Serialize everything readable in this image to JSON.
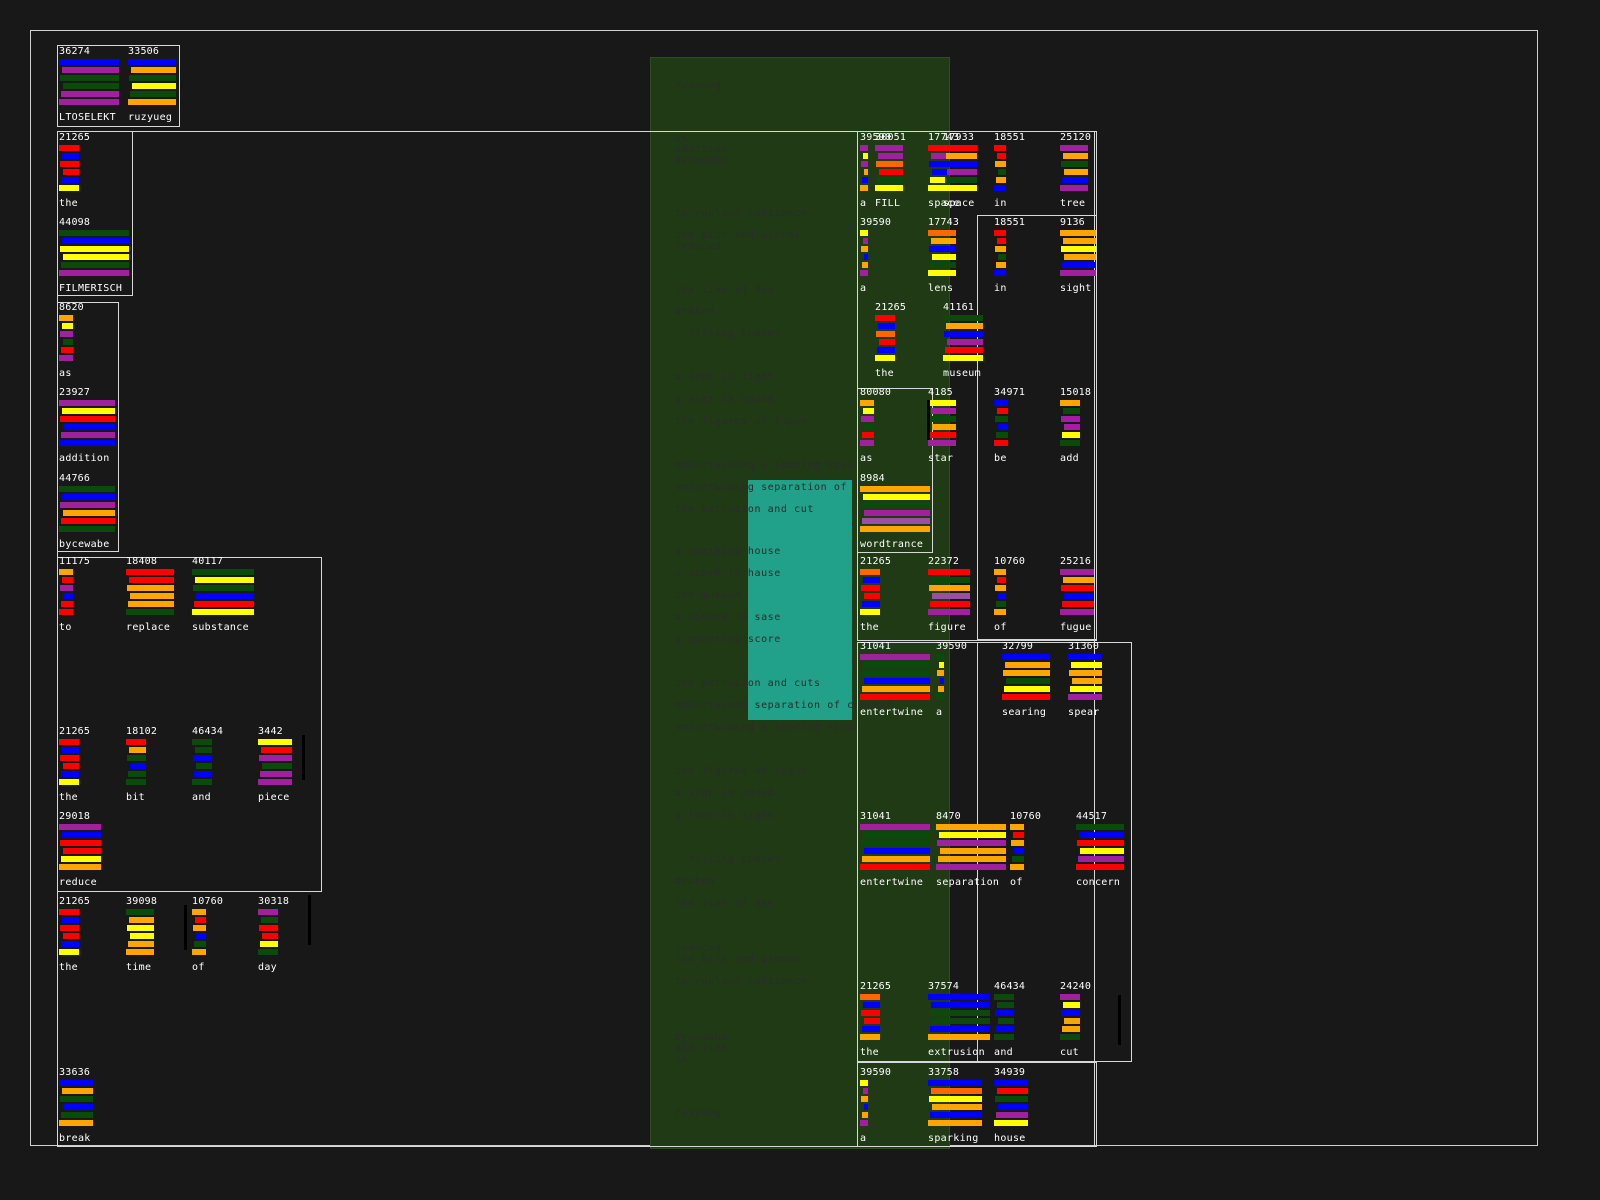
{
  "palette": {
    "background": "#181818",
    "frame": "#cfcfcf",
    "panel_green": "#1f3a14",
    "teal": "#21a08a",
    "bar_colors": [
      "#ff0000",
      "#0000ff",
      "#ffff00",
      "#ffa500",
      "#a020a0",
      "#0a4a0a",
      "#ff6600",
      "#9a4fa0",
      "#cc0000"
    ]
  },
  "poem": {
    "lines": [
      "ruzyueg",
      "as",
      "addition",
      "bycewabe",
      "to replace substance",
      "the bits and pieces",
      "reduced",
      "the time of day",
      "broken",
      ", filling spaces",
      "a lens in sight",
      "a star is added",
      "the figures of fugue",
      "entertwining a searing spear",
      "entertwining separation of concern",
      "the extrusion and cut",
      "a sparking house",
      "a spark in hause",
      "the museum",
      "a sphere in sase",
      "a swearing score",
      "the extrusion and cuts",
      "entertwined separation of concern",
      "entertwining a searing spear",
      "the figures of fugue",
      "a star is added",
      "a lens in sight",
      ", filling spaces",
      "broken",
      "the time of day",
      "reduced",
      "the bits and pieces",
      "to replace substance",
      "bycewabe",
      "addition",
      "as",
      "ruzyueg"
    ]
  },
  "words": [
    {
      "id": "w1",
      "num": "36274",
      "label": "LTOSELEKT",
      "bars": [
        "#0000ff",
        "#a020a0",
        "#0a4a0a",
        "#0a4a0a",
        "#a020a0",
        "#a020a0"
      ]
    },
    {
      "id": "w2",
      "num": "33506",
      "label": "ruzyueg",
      "bars": [
        "#0000ff",
        "#ffa500",
        "#0a4a0a",
        "#ffff00",
        "#0a4a0a",
        "#ffa500"
      ]
    },
    {
      "id": "w3",
      "num": "21265",
      "label": "the",
      "bars": [
        "#ff0000",
        "#0000ff",
        "#ff0000",
        "#ff0000",
        "#0000ff",
        "#ffff00"
      ]
    },
    {
      "id": "w4",
      "num": "44098",
      "label": "FILMERISCH",
      "bars": [
        "#0a4a0a",
        "#0000ff",
        "#ffff00",
        "#ffff00",
        "#0a4a0a",
        "#a020a0"
      ]
    },
    {
      "id": "w5",
      "num": "8620",
      "label": "as",
      "bars": [
        "#ffa500",
        "#ffff00",
        "#a020a0",
        "#0a4a0a",
        "#ff0000",
        "#a020a0"
      ]
    },
    {
      "id": "w6",
      "num": "23927",
      "label": "addition",
      "bars": [
        "#a020a0",
        "#ffff00",
        "#ff0000",
        "#0000ff",
        "#a020a0",
        "#0000ff"
      ]
    },
    {
      "id": "w7",
      "num": "44766",
      "label": "bycewabe",
      "bars": [
        "#0a4a0a",
        "#0000ff",
        "#a020a0",
        "#ffa500",
        "#ff0000",
        "#0a4a0a"
      ]
    },
    {
      "id": "w8",
      "num": "11175",
      "label": "to",
      "bars": [
        "#ffa500",
        "#ff0000",
        "#a020a0",
        "#0000ff",
        "#ff0000",
        "#ff0000"
      ]
    },
    {
      "id": "w9",
      "num": "18408",
      "label": "replace",
      "bars": [
        "#ff0000",
        "#ff0000",
        "#ffa500",
        "#ffa500",
        "#ffa500",
        "#0a4a0a"
      ]
    },
    {
      "id": "w10",
      "num": "40117",
      "label": "substance",
      "bars": [
        "#0a4a0a",
        "#ffff00",
        "#0a4a0a",
        "#0000ff",
        "#ff0000",
        "#ffff00"
      ]
    },
    {
      "id": "w11",
      "num": "21265",
      "label": "the",
      "bars": [
        "#ff0000",
        "#0000ff",
        "#ff0000",
        "#ff0000",
        "#0000ff",
        "#ffff00"
      ]
    },
    {
      "id": "w12",
      "num": "18102",
      "label": "bit",
      "bars": [
        "#ff0000",
        "#ffa500",
        "#0a4a0a",
        "#0000ff",
        "#0a4a0a",
        "#0a4a0a"
      ]
    },
    {
      "id": "w13",
      "num": "46434",
      "label": "and",
      "bars": [
        "#0a4a0a",
        "#0a4a0a",
        "#0000ff",
        "#0a4a0a",
        "#0000ff",
        "#0a4a0a"
      ]
    },
    {
      "id": "w14",
      "num": "3442",
      "label": "piece",
      "bars": [
        "#ffff00",
        "#ff0000",
        "#a020a0",
        "#0a4a0a",
        "#a020a0",
        "#a020a0"
      ]
    },
    {
      "id": "w15",
      "num": "29018",
      "label": "reduce",
      "bars": [
        "#a020a0",
        "#0000ff",
        "#ff0000",
        "#ff0000",
        "#ffff00",
        "#ffa500"
      ]
    },
    {
      "id": "w16",
      "num": "21265",
      "label": "the",
      "bars": [
        "#ff0000",
        "#0000ff",
        "#ff0000",
        "#ff0000",
        "#0000ff",
        "#ffff00"
      ]
    },
    {
      "id": "w17",
      "num": "39098",
      "label": "time",
      "bars": [
        "#0a4a0a",
        "#ffa500",
        "#ffff00",
        "#ffff00",
        "#ffa500",
        "#ffa500"
      ]
    },
    {
      "id": "w18",
      "num": "10760",
      "label": "of",
      "bars": [
        "#ffa500",
        "#ff0000",
        "#ffa500",
        "#0000ff",
        "#0a4a0a",
        "#ffa500"
      ]
    },
    {
      "id": "w19",
      "num": "30318",
      "label": "day",
      "bars": [
        "#a020a0",
        "#0a4a0a",
        "#ff0000",
        "#ff0000",
        "#ffff00",
        "#0a4a0a"
      ]
    },
    {
      "id": "w20",
      "num": "33636",
      "label": "break",
      "bars": [
        "#0000ff",
        "#ffa500",
        "#0a4a0a",
        "#0000ff",
        "#0a4a0a",
        "#ffa500"
      ]
    },
    {
      "id": "w21",
      "num": "39590",
      "label": "a",
      "bars": [
        "#a020a0",
        "#ffff00",
        "#a020a0",
        "#ffa500",
        "#0000ff",
        "#ffa500"
      ]
    },
    {
      "id": "w22",
      "num": "30051",
      "label": "FILL",
      "bars": [
        "#a020a0",
        "#a020a0",
        "#ff6600",
        "#ff0000",
        "#0a4a0a",
        "#ffff00"
      ]
    },
    {
      "id": "w23",
      "num": "17743",
      "label": "space",
      "bars": [
        "#ff0000",
        "#a020a0",
        "#0000ff",
        "#0000ff",
        "#ffff00",
        "#ffff00"
      ]
    },
    {
      "id": "w24",
      "num": "17933",
      "label": "space",
      "bars": [
        "#ff0000",
        "#ffa500",
        "#0000ff",
        "#a020a0",
        "#0a4a0a",
        "#ffff00"
      ]
    },
    {
      "id": "w25",
      "num": "18551",
      "label": "in",
      "bars": [
        "#ff0000",
        "#ff0000",
        "#ffa500",
        "#0a4a0a",
        "#ffa500",
        "#0000ff"
      ]
    },
    {
      "id": "w26",
      "num": "25120",
      "label": "tree",
      "bars": [
        "#a020a0",
        "#ffa500",
        "#0a4a0a",
        "#ffa500",
        "#0000ff",
        "#a020a0"
      ]
    },
    {
      "id": "w27",
      "num": "39590",
      "label": "a",
      "bars": [
        "#ffff00",
        "#a020a0",
        "#ffa500",
        "#0000ff",
        "#ffa500",
        "#a020a0"
      ]
    },
    {
      "id": "w28",
      "num": "17743",
      "label": "lens",
      "bars": [
        "#ff6600",
        "#ffa500",
        "#0000ff",
        "#ffff00",
        "#0a4a0a",
        "#ffff00"
      ]
    },
    {
      "id": "w29",
      "num": "18551",
      "label": "in",
      "bars": [
        "#ff0000",
        "#ff0000",
        "#ffa500",
        "#0a4a0a",
        "#ffa500",
        "#0000ff"
      ]
    },
    {
      "id": "w30",
      "num": "9136",
      "label": "sight",
      "bars": [
        "#ffa500",
        "#ffa500",
        "#ffff00",
        "#ffa500",
        "#0000ff",
        "#a020a0"
      ]
    },
    {
      "id": "w31",
      "num": "21265",
      "label": "the",
      "bars": [
        "#ff0000",
        "#0000ff",
        "#ff6600",
        "#ff0000",
        "#0000ff",
        "#ffff00"
      ]
    },
    {
      "id": "w32",
      "num": "41161",
      "label": "museum",
      "bars": [
        "#0a4a0a",
        "#ffa500",
        "#0000ff",
        "#a020a0",
        "#ff0000",
        "#ffff00"
      ]
    },
    {
      "id": "w33",
      "num": "80080",
      "label": "as",
      "bars": [
        "#ffa500",
        "#ffff00",
        "#a020a0",
        "#0a4a0a",
        "#ff0000",
        "#a020a0"
      ]
    },
    {
      "id": "w34",
      "num": "4185",
      "label": "star",
      "bars": [
        "#ffff00",
        "#a020a0",
        "#0a4a0a",
        "#ffa500",
        "#ff0000",
        "#a020a0"
      ]
    },
    {
      "id": "w35",
      "num": "34971",
      "label": "be",
      "bars": [
        "#0000ff",
        "#ff0000",
        "#0a4a0a",
        "#0000ff",
        "#0a4a0a",
        "#ff0000"
      ]
    },
    {
      "id": "w36",
      "num": "15018",
      "label": "add",
      "bars": [
        "#ffa500",
        "#0a4a0a",
        "#a020a0",
        "#a020a0",
        "#ffff00",
        "#0a4a0a"
      ]
    },
    {
      "id": "w37",
      "num": "8984",
      "label": "wordtrance",
      "bars": [
        "#ffa500",
        "#ffff00",
        "#0a4a0a",
        "#a020a0",
        "#9a4fa0",
        "#ffa500"
      ]
    },
    {
      "id": "w38",
      "num": "21265",
      "label": "the",
      "bars": [
        "#ff6600",
        "#0000ff",
        "#ff0000",
        "#ff0000",
        "#0000ff",
        "#ffff00"
      ]
    },
    {
      "id": "w39",
      "num": "22372",
      "label": "figure",
      "bars": [
        "#ff0000",
        "#0a4a0a",
        "#ffa500",
        "#9a4fa0",
        "#ff0000",
        "#a020a0"
      ]
    },
    {
      "id": "w40",
      "num": "10760",
      "label": "of",
      "bars": [
        "#ffa500",
        "#ff0000",
        "#ffa500",
        "#0000ff",
        "#0a4a0a",
        "#ffa500"
      ]
    },
    {
      "id": "w41",
      "num": "25216",
      "label": "fugue",
      "bars": [
        "#a020a0",
        "#ffa500",
        "#ff0000",
        "#0000ff",
        "#ff0000",
        "#a020a0"
      ]
    },
    {
      "id": "w42",
      "num": "31041",
      "label": "entertwine",
      "bars": [
        "#a020a0",
        "#0a4a0a",
        "#0a4a0a",
        "#0000ff",
        "#ffa500",
        "#ff0000"
      ]
    },
    {
      "id": "w43",
      "num": "39590",
      "label": "a",
      "bars": [
        "#0a4a0a",
        "#ffff00",
        "#ffa500",
        "#0000ff",
        "#ffa500",
        "#0a4a0a"
      ]
    },
    {
      "id": "w44",
      "num": "32799",
      "label": "searing",
      "bars": [
        "#0000ff",
        "#ffa500",
        "#ffa500",
        "#0a4a0a",
        "#ffff00",
        "#ff0000"
      ]
    },
    {
      "id": "w45",
      "num": "31360",
      "label": "spear",
      "bars": [
        "#0000ff",
        "#ffff00",
        "#ffa500",
        "#ffa500",
        "#ffff00",
        "#a020a0"
      ]
    },
    {
      "id": "w46",
      "num": "31041",
      "label": "entertwine",
      "bars": [
        "#a020a0",
        "#0a4a0a",
        "#0a4a0a",
        "#0000ff",
        "#ffa500",
        "#ff0000"
      ]
    },
    {
      "id": "w47",
      "num": "8470",
      "label": "separation",
      "bars": [
        "#ffa500",
        "#ffff00",
        "#a020a0",
        "#ffa500",
        "#ffa500",
        "#a020a0"
      ]
    },
    {
      "id": "w48",
      "num": "10760",
      "label": "of",
      "bars": [
        "#ffa500",
        "#ff0000",
        "#ffa500",
        "#0000ff",
        "#0a4a0a",
        "#ffa500"
      ]
    },
    {
      "id": "w49",
      "num": "44517",
      "label": "concern",
      "bars": [
        "#0a4a0a",
        "#0000ff",
        "#ff0000",
        "#ffff00",
        "#a020a0",
        "#ff0000"
      ]
    },
    {
      "id": "w50",
      "num": "21265",
      "label": "the",
      "bars": [
        "#ff6600",
        "#0000ff",
        "#ff0000",
        "#ff0000",
        "#0000ff",
        "#ffa500"
      ]
    },
    {
      "id": "w51",
      "num": "37574",
      "label": "extrusion",
      "bars": [
        "#0000ff",
        "#0000ff",
        "#0a4a0a",
        "#0a4a0a",
        "#0000ff",
        "#ffa500"
      ]
    },
    {
      "id": "w52",
      "num": "46434",
      "label": "and",
      "bars": [
        "#0a4a0a",
        "#0a4a0a",
        "#0000ff",
        "#0a4a0a",
        "#0000ff",
        "#0a4a0a"
      ]
    },
    {
      "id": "w53",
      "num": "24240",
      "label": "cut",
      "bars": [
        "#a020a0",
        "#ffff00",
        "#0000ff",
        "#ffa500",
        "#ffa500",
        "#0a4a0a"
      ]
    },
    {
      "id": "w54",
      "num": "39590",
      "label": "a",
      "bars": [
        "#ffff00",
        "#a020a0",
        "#ffa500",
        "#0000ff",
        "#ffa500",
        "#a020a0"
      ]
    },
    {
      "id": "w55",
      "num": "33758",
      "label": "sparking",
      "bars": [
        "#0000ff",
        "#ff6600",
        "#ffff00",
        "#ffa500",
        "#0000ff",
        "#ffa500"
      ]
    },
    {
      "id": "w56",
      "num": "34939",
      "label": "house",
      "bars": [
        "#0000ff",
        "#ff0000",
        "#0a4a0a",
        "#0000ff",
        "#a020a0",
        "#ffff00"
      ]
    }
  ]
}
